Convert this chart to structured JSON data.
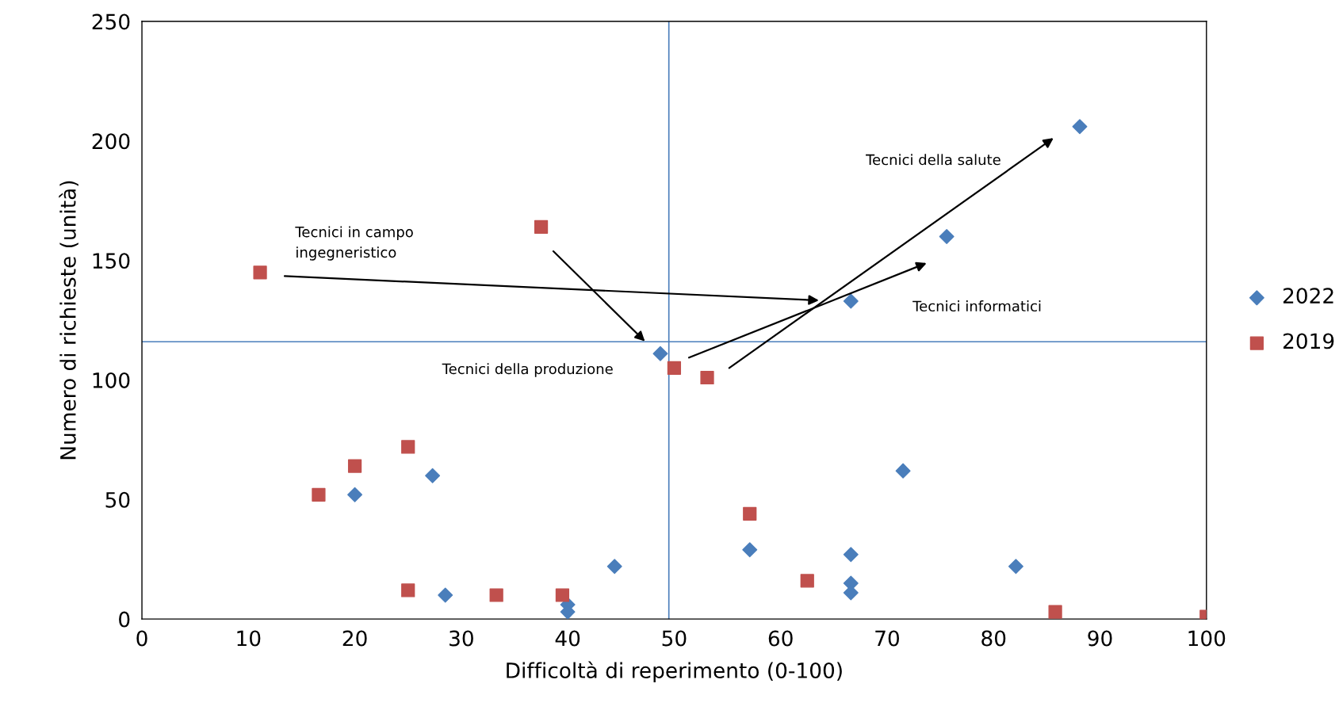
{
  "chart_data": {
    "type": "scatter",
    "xlabel": "Difficoltà di reperimento (0-100)",
    "ylabel": "Numero di richieste (unità)",
    "xlim": [
      0,
      100
    ],
    "ylim": [
      0,
      250
    ],
    "xticks": [
      0,
      10,
      20,
      30,
      40,
      50,
      60,
      70,
      80,
      90,
      100
    ],
    "yticks": [
      0,
      50,
      100,
      150,
      200,
      250
    ],
    "grid": false,
    "legend": "right",
    "series": [
      {
        "name": "2022",
        "color": "#4a7ebb",
        "marker": "diamond",
        "x": [
          88.1,
          75.6,
          66.6,
          48.7,
          71.5,
          27.3,
          20.0,
          44.4,
          57.1,
          66.6,
          66.6,
          66.6,
          82.1,
          28.5,
          40.0,
          40.0
        ],
        "values": [
          206,
          160,
          133,
          111,
          62,
          60,
          52,
          22,
          29,
          27,
          15,
          11,
          22,
          10,
          6,
          3
        ]
      },
      {
        "name": "2019",
        "color": "#c0504d",
        "marker": "square",
        "x": [
          11.1,
          37.5,
          50.0,
          53.1,
          16.6,
          20.0,
          25.0,
          25.0,
          33.3,
          39.5,
          57.1,
          62.5,
          85.8,
          100
        ],
        "values": [
          145,
          164,
          105,
          101,
          52,
          64,
          72,
          12,
          10,
          10,
          44,
          16,
          3,
          1
        ]
      }
    ],
    "ref_lines": [
      {
        "axis": "x",
        "value": 49.5,
        "color": "#4a7ebb"
      },
      {
        "axis": "y",
        "value": 116,
        "color": "#4a7ebb"
      }
    ],
    "annotations": [
      "Tecnici in campo\ningegneristico",
      "Tecnici della produzione",
      "Tecnici informatici",
      "Tecnici della salute"
    ]
  }
}
